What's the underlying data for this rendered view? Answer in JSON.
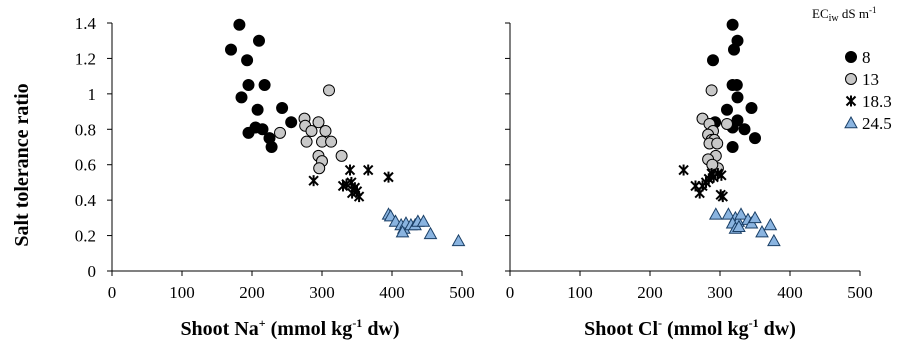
{
  "chart_data": [
    {
      "type": "scatter",
      "xlabel": {
        "prefix": "Shoot Na",
        "sup": "+",
        "middle": " (mmol kg",
        "sup2": "-1",
        "suffix": " dw)"
      },
      "ylabel": "Salt tolerance ratio",
      "xlim": [
        0,
        500
      ],
      "ylim": [
        0,
        1.4
      ],
      "xticks": [
        "0",
        "100",
        "200",
        "300",
        "400",
        "500"
      ],
      "yticks": [
        "0",
        "0.2",
        "0.4",
        "0.6",
        "0.8",
        "1",
        "1.2",
        "1.4"
      ],
      "series": [
        {
          "name": "8",
          "marker": "circle",
          "color": "#000000",
          "points": [
            [
              182,
              1.39
            ],
            [
              170,
              1.25
            ],
            [
              210,
              1.3
            ],
            [
              193,
              1.19
            ],
            [
              185,
              0.98
            ],
            [
              195,
              1.05
            ],
            [
              218,
              1.05
            ],
            [
              208,
              0.91
            ],
            [
              195,
              0.78
            ],
            [
              205,
              0.81
            ],
            [
              215,
              0.8
            ],
            [
              225,
              0.75
            ],
            [
              228,
              0.7
            ],
            [
              243,
              0.92
            ],
            [
              256,
              0.84
            ]
          ]
        },
        {
          "name": "13",
          "marker": "circle",
          "color": "#c8c8c8",
          "points": [
            [
              310,
              1.02
            ],
            [
              275,
              0.86
            ],
            [
              276,
              0.82
            ],
            [
              295,
              0.84
            ],
            [
              285,
              0.79
            ],
            [
              305,
              0.79
            ],
            [
              240,
              0.78
            ],
            [
              278,
              0.73
            ],
            [
              300,
              0.73
            ],
            [
              313,
              0.73
            ],
            [
              295,
              0.65
            ],
            [
              328,
              0.65
            ],
            [
              300,
              0.62
            ],
            [
              296,
              0.58
            ]
          ]
        },
        {
          "name": "18.3",
          "marker": "star",
          "color": "#000000",
          "points": [
            [
              288,
              0.51
            ],
            [
              330,
              0.48
            ],
            [
              335,
              0.49
            ],
            [
              340,
              0.57
            ],
            [
              342,
              0.5
            ],
            [
              347,
              0.47
            ],
            [
              343,
              0.44
            ],
            [
              350,
              0.45
            ],
            [
              353,
              0.42
            ],
            [
              366,
              0.57
            ],
            [
              395,
              0.53
            ]
          ]
        },
        {
          "name": "24.5",
          "marker": "triangle",
          "color": "#8ab4e0",
          "points": [
            [
              395,
              0.32
            ],
            [
              398,
              0.31
            ],
            [
              405,
              0.28
            ],
            [
              413,
              0.26
            ],
            [
              417,
              0.24
            ],
            [
              420,
              0.27
            ],
            [
              427,
              0.26
            ],
            [
              433,
              0.26
            ],
            [
              437,
              0.28
            ],
            [
              445,
              0.28
            ],
            [
              455,
              0.21
            ],
            [
              495,
              0.17
            ],
            [
              415,
              0.22
            ]
          ]
        }
      ]
    },
    {
      "type": "scatter",
      "xlabel": {
        "prefix": "Shoot Cl",
        "sup": "-",
        "middle": " (mmol kg",
        "sup2": "-1",
        "suffix": " dw)"
      },
      "ylabel": "",
      "xlim": [
        0,
        500
      ],
      "ylim": [
        0,
        1.4
      ],
      "xticks": [
        "0",
        "100",
        "200",
        "300",
        "400",
        "500"
      ],
      "yticks": [],
      "series": [
        {
          "name": "8",
          "marker": "circle",
          "color": "#000000",
          "points": [
            [
              318,
              1.39
            ],
            [
              325,
              1.3
            ],
            [
              320,
              1.25
            ],
            [
              290,
              1.19
            ],
            [
              318,
              1.05
            ],
            [
              324,
              1.05
            ],
            [
              325,
              0.98
            ],
            [
              345,
              0.92
            ],
            [
              310,
              0.91
            ],
            [
              335,
              0.8
            ],
            [
              350,
              0.75
            ],
            [
              325,
              0.85
            ],
            [
              293,
              0.84
            ],
            [
              318,
              0.81
            ],
            [
              318,
              0.7
            ]
          ]
        },
        {
          "name": "13",
          "marker": "circle",
          "color": "#c8c8c8",
          "points": [
            [
              288,
              1.02
            ],
            [
              275,
              0.86
            ],
            [
              285,
              0.83
            ],
            [
              290,
              0.79
            ],
            [
              283,
              0.77
            ],
            [
              288,
              0.74
            ],
            [
              292,
              0.74
            ],
            [
              285,
              0.72
            ],
            [
              296,
              0.72
            ],
            [
              294,
              0.65
            ],
            [
              283,
              0.63
            ],
            [
              297,
              0.58
            ],
            [
              289,
              0.6
            ],
            [
              310,
              0.83
            ]
          ]
        },
        {
          "name": "18.3",
          "marker": "star",
          "color": "#000000",
          "points": [
            [
              248,
              0.57
            ],
            [
              265,
              0.48
            ],
            [
              271,
              0.44
            ],
            [
              275,
              0.48
            ],
            [
              280,
              0.5
            ],
            [
              284,
              0.52
            ],
            [
              288,
              0.55
            ],
            [
              291,
              0.53
            ],
            [
              297,
              0.55
            ],
            [
              302,
              0.54
            ],
            [
              301,
              0.43
            ],
            [
              304,
              0.42
            ]
          ]
        },
        {
          "name": "24.5",
          "marker": "triangle",
          "color": "#8ab4e0",
          "points": [
            [
              294,
              0.32
            ],
            [
              312,
              0.32
            ],
            [
              322,
              0.3
            ],
            [
              326,
              0.28
            ],
            [
              330,
              0.32
            ],
            [
              318,
              0.27
            ],
            [
              322,
              0.24
            ],
            [
              327,
              0.25
            ],
            [
              340,
              0.29
            ],
            [
              345,
              0.27
            ],
            [
              350,
              0.3
            ],
            [
              360,
              0.22
            ],
            [
              372,
              0.26
            ],
            [
              377,
              0.17
            ]
          ]
        }
      ]
    }
  ],
  "legend": {
    "title_main": "EC",
    "title_sub": "iw",
    "title_rest": " dS m",
    "title_sup": "-1",
    "entries": [
      "8",
      "13",
      "18.3",
      "24.5"
    ]
  }
}
